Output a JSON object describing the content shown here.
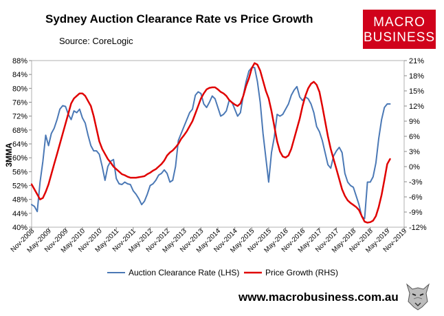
{
  "chart_data": {
    "type": "line",
    "title": "Sydney Auction Clearance Rate vs Price Growth",
    "source": "Source: CoreLogic",
    "ylabel": "3MMA",
    "website": "www.macrobusiness.com.au",
    "logo": {
      "line1": "MACRO",
      "line2": "BUSINESS"
    },
    "x_labels": [
      "Nov-2008",
      "May-2009",
      "Nov-2009",
      "May-2010",
      "Nov-2010",
      "May-2011",
      "Nov-2011",
      "May-2012",
      "Nov-2012",
      "May-2013",
      "Nov-2013",
      "May-2014",
      "Nov-2014",
      "May-2015",
      "Nov-2015",
      "May-2016",
      "Nov-2016",
      "May-2017",
      "Nov-2017",
      "May-2018",
      "Nov-2018",
      "May-2019",
      "Nov-2019"
    ],
    "x_range_months": [
      0,
      132
    ],
    "left_axis": {
      "ylim": [
        40,
        88
      ],
      "ticks": [
        "40%",
        "44%",
        "48%",
        "52%",
        "56%",
        "60%",
        "64%",
        "68%",
        "72%",
        "76%",
        "80%",
        "84%",
        "88%"
      ]
    },
    "right_axis": {
      "ylim": [
        -12,
        21
      ],
      "ticks": [
        "-12%",
        "-9%",
        "-6%",
        "-3%",
        "0%",
        "3%",
        "6%",
        "9%",
        "12%",
        "15%",
        "18%",
        "21%"
      ]
    },
    "legend_position": "bottom",
    "series": [
      {
        "name": "Auction Clearance Rate (LHS)",
        "axis": "left",
        "color": "#4a78b5",
        "points": [
          [
            0,
            46.5
          ],
          [
            1,
            46
          ],
          [
            2,
            44.5
          ],
          [
            3,
            53
          ],
          [
            4,
            59
          ],
          [
            5,
            66.5
          ],
          [
            6,
            63.5
          ],
          [
            7,
            67
          ],
          [
            8,
            68.5
          ],
          [
            9,
            71
          ],
          [
            10,
            74
          ],
          [
            11,
            75
          ],
          [
            12,
            74.8
          ],
          [
            13,
            72.5
          ],
          [
            14,
            71
          ],
          [
            15,
            73.5
          ],
          [
            16,
            73
          ],
          [
            17,
            74
          ],
          [
            18,
            71.5
          ],
          [
            19,
            70
          ],
          [
            20,
            66.5
          ],
          [
            21,
            63.5
          ],
          [
            22,
            62
          ],
          [
            23,
            62
          ],
          [
            24,
            61
          ],
          [
            25,
            57.5
          ],
          [
            26,
            53.5
          ],
          [
            27,
            57.5
          ],
          [
            28,
            59
          ],
          [
            29,
            59.5
          ],
          [
            30,
            54
          ],
          [
            31,
            52.5
          ],
          [
            32,
            52.3
          ],
          [
            33,
            53
          ],
          [
            34,
            52.5
          ],
          [
            35,
            52.3
          ],
          [
            36,
            50.5
          ],
          [
            37,
            49.5
          ],
          [
            38,
            48.2
          ],
          [
            39,
            46.5
          ],
          [
            40,
            47.5
          ],
          [
            41,
            49.5
          ],
          [
            42,
            52
          ],
          [
            43,
            52.5
          ],
          [
            44,
            53.5
          ],
          [
            45,
            55
          ],
          [
            46,
            55.5
          ],
          [
            47,
            56.5
          ],
          [
            48,
            55.5
          ],
          [
            49,
            53
          ],
          [
            50,
            53.5
          ],
          [
            51,
            57.5
          ],
          [
            52,
            65
          ],
          [
            53,
            67
          ],
          [
            54,
            69
          ],
          [
            55,
            71
          ],
          [
            56,
            73
          ],
          [
            57,
            74
          ],
          [
            58,
            78
          ],
          [
            59,
            79
          ],
          [
            60,
            78.5
          ],
          [
            61,
            75.5
          ],
          [
            62,
            74.5
          ],
          [
            63,
            76
          ],
          [
            64,
            77.8
          ],
          [
            65,
            77
          ],
          [
            66,
            74.5
          ],
          [
            67,
            72
          ],
          [
            68,
            72.5
          ],
          [
            69,
            73.5
          ],
          [
            70,
            76.5
          ],
          [
            71,
            76
          ],
          [
            72,
            74
          ],
          [
            73,
            72
          ],
          [
            74,
            73
          ],
          [
            75,
            78
          ],
          [
            76,
            82
          ],
          [
            77,
            85
          ],
          [
            78,
            86
          ],
          [
            79,
            86
          ],
          [
            80,
            82
          ],
          [
            81,
            76
          ],
          [
            82,
            67
          ],
          [
            83,
            60
          ],
          [
            84,
            53
          ],
          [
            85,
            61.5
          ],
          [
            86,
            66
          ],
          [
            87,
            72.5
          ],
          [
            88,
            72
          ],
          [
            89,
            72.5
          ],
          [
            90,
            74
          ],
          [
            91,
            75.5
          ],
          [
            92,
            78
          ],
          [
            93,
            79.5
          ],
          [
            94,
            80.5
          ],
          [
            95,
            77.5
          ],
          [
            96,
            76.5
          ],
          [
            97,
            77.5
          ],
          [
            98,
            77
          ],
          [
            99,
            75.5
          ],
          [
            100,
            73
          ],
          [
            101,
            69
          ],
          [
            102,
            67.5
          ],
          [
            103,
            65
          ],
          [
            104,
            61.5
          ],
          [
            105,
            58
          ],
          [
            106,
            57
          ],
          [
            107,
            60.5
          ],
          [
            108,
            62
          ],
          [
            109,
            63
          ],
          [
            110,
            61.5
          ],
          [
            111,
            55.5
          ],
          [
            112,
            53
          ],
          [
            113,
            52
          ],
          [
            114,
            51.5
          ],
          [
            115,
            49
          ],
          [
            116,
            46.5
          ],
          [
            117,
            43
          ],
          [
            118,
            42.5
          ],
          [
            119,
            53
          ],
          [
            120,
            53
          ],
          [
            121,
            54.5
          ],
          [
            122,
            58.5
          ],
          [
            123,
            65.5
          ],
          [
            124,
            71
          ],
          [
            125,
            74.5
          ],
          [
            126,
            75.5
          ],
          [
            127,
            75.5
          ]
        ]
      },
      {
        "name": "Price Growth (RHS)",
        "axis": "right",
        "color": "#e00000",
        "points": [
          [
            0,
            -3.5
          ],
          [
            1,
            -4.5
          ],
          [
            2,
            -5.5
          ],
          [
            3,
            -6.5
          ],
          [
            4,
            -6.2
          ],
          [
            5,
            -5
          ],
          [
            6,
            -3.5
          ],
          [
            7,
            -1.5
          ],
          [
            8,
            0.5
          ],
          [
            9,
            2.5
          ],
          [
            10,
            4.5
          ],
          [
            11,
            6.5
          ],
          [
            12,
            8.5
          ],
          [
            13,
            10.5
          ],
          [
            14,
            12.5
          ],
          [
            15,
            13.5
          ],
          [
            16,
            14
          ],
          [
            17,
            14.5
          ],
          [
            18,
            14.5
          ],
          [
            19,
            14
          ],
          [
            20,
            13
          ],
          [
            21,
            12
          ],
          [
            22,
            10
          ],
          [
            23,
            7.5
          ],
          [
            24,
            5
          ],
          [
            25,
            3.5
          ],
          [
            26,
            2.5
          ],
          [
            27,
            1.5
          ],
          [
            28,
            0.8
          ],
          [
            29,
            0
          ],
          [
            30,
            -0.5
          ],
          [
            31,
            -1
          ],
          [
            32,
            -1.5
          ],
          [
            33,
            -1.7
          ],
          [
            34,
            -2
          ],
          [
            35,
            -2.2
          ],
          [
            36,
            -2.2
          ],
          [
            37,
            -2.2
          ],
          [
            38,
            -2.1
          ],
          [
            39,
            -2
          ],
          [
            40,
            -1.9
          ],
          [
            41,
            -1.5
          ],
          [
            42,
            -1.2
          ],
          [
            43,
            -0.8
          ],
          [
            44,
            -0.5
          ],
          [
            45,
            0
          ],
          [
            46,
            0.5
          ],
          [
            47,
            1.2
          ],
          [
            48,
            2.2
          ],
          [
            49,
            2.8
          ],
          [
            50,
            3.2
          ],
          [
            51,
            3.8
          ],
          [
            52,
            4.5
          ],
          [
            53,
            5.5
          ],
          [
            54,
            6.2
          ],
          [
            55,
            7
          ],
          [
            56,
            8
          ],
          [
            57,
            9
          ],
          [
            58,
            10.5
          ],
          [
            59,
            12
          ],
          [
            60,
            13.5
          ],
          [
            61,
            14.5
          ],
          [
            62,
            15.3
          ],
          [
            63,
            15.6
          ],
          [
            64,
            15.7
          ],
          [
            65,
            15.7
          ],
          [
            66,
            15.3
          ],
          [
            67,
            14.8
          ],
          [
            68,
            14.5
          ],
          [
            69,
            14
          ],
          [
            70,
            13.2
          ],
          [
            71,
            12.7
          ],
          [
            72,
            12.3
          ],
          [
            73,
            12
          ],
          [
            74,
            12.5
          ],
          [
            75,
            14
          ],
          [
            76,
            16
          ],
          [
            77,
            17.5
          ],
          [
            78,
            19.5
          ],
          [
            79,
            20.5
          ],
          [
            80,
            20.2
          ],
          [
            81,
            19
          ],
          [
            82,
            17
          ],
          [
            83,
            15
          ],
          [
            84,
            13.5
          ],
          [
            85,
            11
          ],
          [
            86,
            8
          ],
          [
            87,
            5
          ],
          [
            88,
            3
          ],
          [
            89,
            2
          ],
          [
            90,
            1.8
          ],
          [
            91,
            2.2
          ],
          [
            92,
            3.5
          ],
          [
            93,
            5.5
          ],
          [
            94,
            7.5
          ],
          [
            95,
            9.5
          ],
          [
            96,
            12
          ],
          [
            97,
            14
          ],
          [
            98,
            15.5
          ],
          [
            99,
            16.4
          ],
          [
            100,
            16.8
          ],
          [
            101,
            16.2
          ],
          [
            102,
            14.8
          ],
          [
            103,
            12
          ],
          [
            104,
            9
          ],
          [
            105,
            6
          ],
          [
            106,
            3.5
          ],
          [
            107,
            1.5
          ],
          [
            108,
            -0.5
          ],
          [
            109,
            -2.5
          ],
          [
            110,
            -4.5
          ],
          [
            111,
            -5.8
          ],
          [
            112,
            -6.7
          ],
          [
            113,
            -7.2
          ],
          [
            114,
            -7.6
          ],
          [
            115,
            -8
          ],
          [
            116,
            -8.6
          ],
          [
            117,
            -9.8
          ],
          [
            118,
            -10.9
          ],
          [
            119,
            -11.1
          ],
          [
            120,
            -11
          ],
          [
            121,
            -10.7
          ],
          [
            122,
            -9.8
          ],
          [
            123,
            -8
          ],
          [
            124,
            -5.6
          ],
          [
            125,
            -2.6
          ],
          [
            126,
            0.5
          ],
          [
            127,
            1.5
          ]
        ]
      }
    ]
  }
}
